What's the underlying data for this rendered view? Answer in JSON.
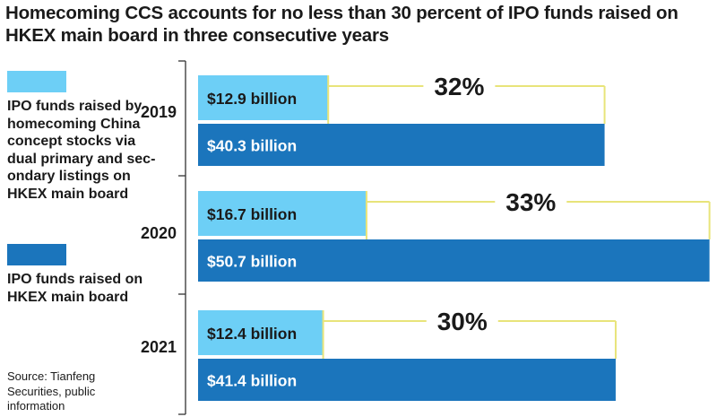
{
  "title": "Homecoming CCS accounts for no less than 30 percent of IPO funds raised on HKEX main board in three consecutive years",
  "legend": [
    {
      "label": "IPO funds raised by homecoming China concept stocks via dual primary and sec-ondary listings on HKEX main board",
      "color": "#6dcff6"
    },
    {
      "label": "IPO funds raised on HKEX main board",
      "color": "#1b75bc"
    }
  ],
  "source": "Source: Tianfeng Securities, public information",
  "colors": {
    "homecoming": "#6dcff6",
    "main_board": "#1b75bc",
    "bracket": "#e8e47a",
    "axis": "#333333"
  },
  "chart_data": {
    "type": "bar",
    "orientation": "horizontal",
    "categories": [
      "2019",
      "2020",
      "2021"
    ],
    "series": [
      {
        "name": "IPO funds raised by homecoming China concept stocks via dual primary and secondary listings on HKEX main board",
        "values": [
          12.9,
          16.7,
          12.4
        ],
        "labels": [
          "$12.9 billion",
          "$16.7 billion",
          "$12.4 billion"
        ]
      },
      {
        "name": "IPO funds raised on HKEX main board",
        "values": [
          40.3,
          50.7,
          41.4
        ],
        "labels": [
          "$40.3 billion",
          "$50.7 billion",
          "$41.4 billion"
        ]
      }
    ],
    "annotations": [
      "32%",
      "33%",
      "30%"
    ],
    "xlim": [
      0,
      51
    ],
    "grid": false
  }
}
